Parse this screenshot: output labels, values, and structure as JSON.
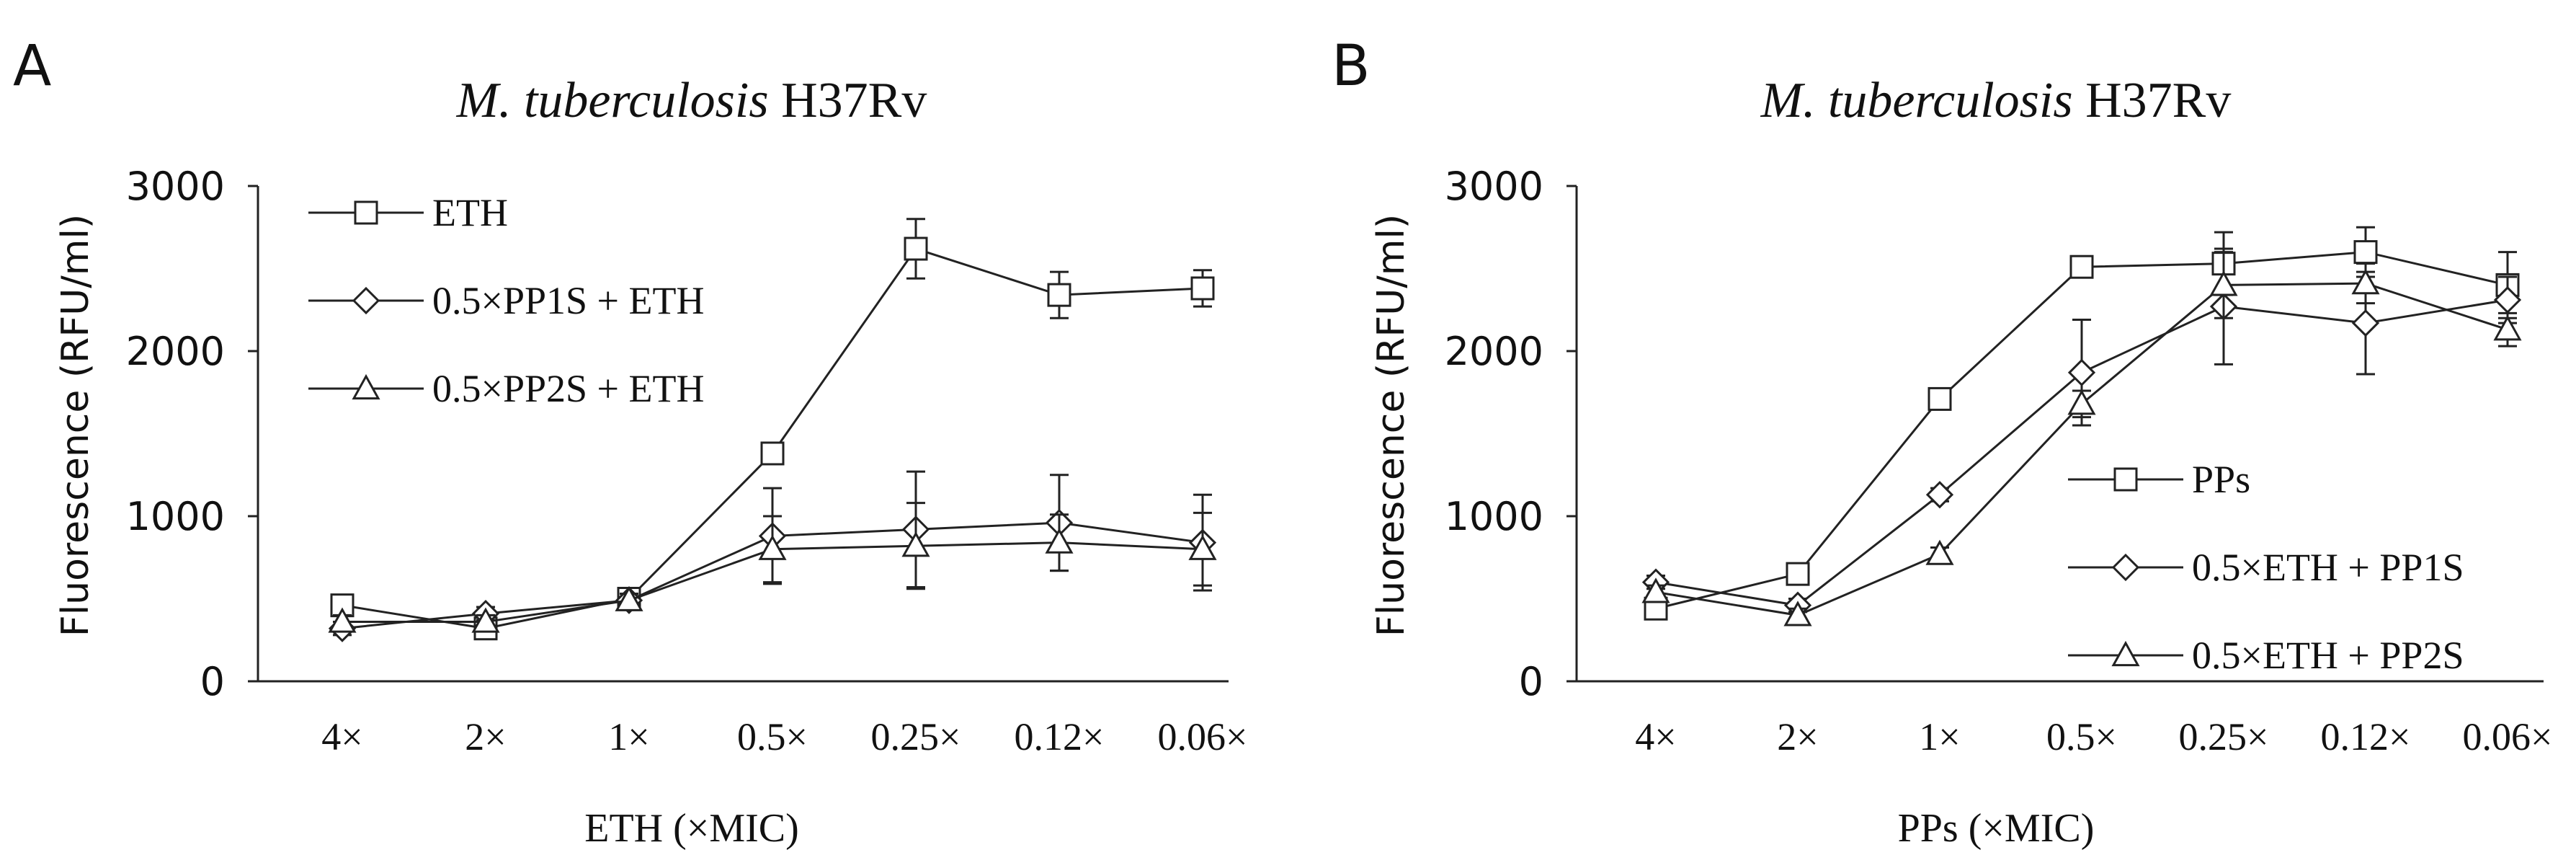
{
  "chart_data": [
    {
      "panel": "A",
      "type": "line",
      "title_italic": "M. tuberculosis",
      "title_rest": "H37Rv",
      "xlabel": "ETH (×MIC)",
      "ylabel": "Fluorescence (RFU/ml)",
      "ylim": [
        0,
        3000
      ],
      "yticks": [
        "0",
        "1000",
        "2000",
        "3000"
      ],
      "categories": [
        "4×",
        "2×",
        "1×",
        "0.5×",
        "0.25×",
        "0.12×",
        "0.06×"
      ],
      "legend_position": "top-left",
      "series": [
        {
          "name": "ETH",
          "marker": "square",
          "values": [
            460,
            320,
            500,
            1380,
            2620,
            2340,
            2380
          ],
          "errors": [
            60,
            40,
            40,
            60,
            180,
            140,
            110
          ]
        },
        {
          "name": "0.5×PP1S + ETH",
          "marker": "diamond",
          "values": [
            320,
            410,
            490,
            880,
            920,
            960,
            840
          ],
          "errors": [
            40,
            40,
            40,
            290,
            350,
            290,
            290
          ]
        },
        {
          "name": "0.5×PP2S + ETH",
          "marker": "triangle",
          "values": [
            360,
            360,
            490,
            800,
            820,
            840,
            800
          ],
          "errors": [
            40,
            40,
            40,
            200,
            260,
            170,
            220
          ]
        }
      ]
    },
    {
      "panel": "B",
      "type": "line",
      "title_italic": "M. tuberculosis",
      "title_rest": "H37Rv",
      "xlabel": "PPs (×MIC)",
      "ylabel": "Fluorescence (RFU/ml)",
      "ylim": [
        0,
        3000
      ],
      "yticks": [
        "0",
        "1000",
        "2000",
        "3000"
      ],
      "categories": [
        "4×",
        "2×",
        "1×",
        "0.5×",
        "0.25×",
        "0.12×",
        "0.06×"
      ],
      "legend_position": "bottom-right",
      "series": [
        {
          "name": "PPs",
          "marker": "square",
          "values": [
            440,
            650,
            1710,
            2510,
            2530,
            2600,
            2400
          ],
          "errors": [
            40,
            40,
            60,
            50,
            190,
            150,
            200
          ]
        },
        {
          "name": "0.5×ETH + PP1S",
          "marker": "diamond",
          "values": [
            600,
            460,
            1130,
            1870,
            2270,
            2170,
            2310
          ],
          "errors": [
            40,
            40,
            40,
            320,
            350,
            310,
            140
          ]
        },
        {
          "name": "0.5×ETH + PP2S",
          "marker": "triangle",
          "values": [
            540,
            400,
            770,
            1680,
            2400,
            2410,
            2130
          ],
          "errors": [
            40,
            40,
            40,
            80,
            200,
            120,
            100
          ]
        }
      ]
    }
  ]
}
